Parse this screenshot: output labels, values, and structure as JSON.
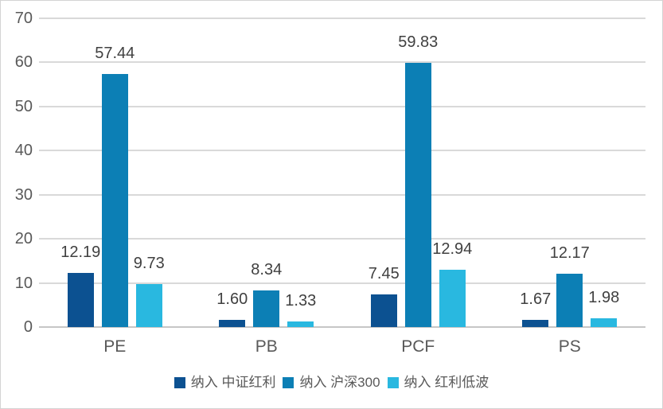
{
  "chart_data": {
    "type": "bar",
    "title": "",
    "xlabel": "",
    "ylabel": "",
    "categories": [
      "PE",
      "PB",
      "PCF",
      "PS"
    ],
    "series": [
      {
        "name": "纳入 中证红利",
        "color": "#0c5191",
        "values": [
          12.19,
          1.6,
          7.45,
          1.67
        ]
      },
      {
        "name": "纳入 沪深300",
        "color": "#0c7fb5",
        "values": [
          57.44,
          8.34,
          59.83,
          12.17
        ]
      },
      {
        "name": "纳入 红利低波",
        "color": "#29b8e0",
        "values": [
          9.73,
          1.33,
          12.94,
          1.98
        ]
      }
    ],
    "value_labels": [
      [
        "12.19",
        "1.60",
        "7.45",
        "1.67"
      ],
      [
        "57.44",
        "8.34",
        "59.83",
        "12.17"
      ],
      [
        "9.73",
        "1.33",
        "12.94",
        "1.98"
      ]
    ],
    "ylim": [
      0,
      70
    ],
    "yticks": [
      0,
      10,
      20,
      30,
      40,
      50,
      60,
      70
    ],
    "grid": true,
    "legend_position": "bottom",
    "colors": {
      "gridline": "#d9d9d9",
      "axis_line": "#c6c6c6",
      "tick_text": "#595959",
      "value_text": "#404040",
      "border": "#d3d3d3",
      "background": "#ffffff"
    }
  }
}
